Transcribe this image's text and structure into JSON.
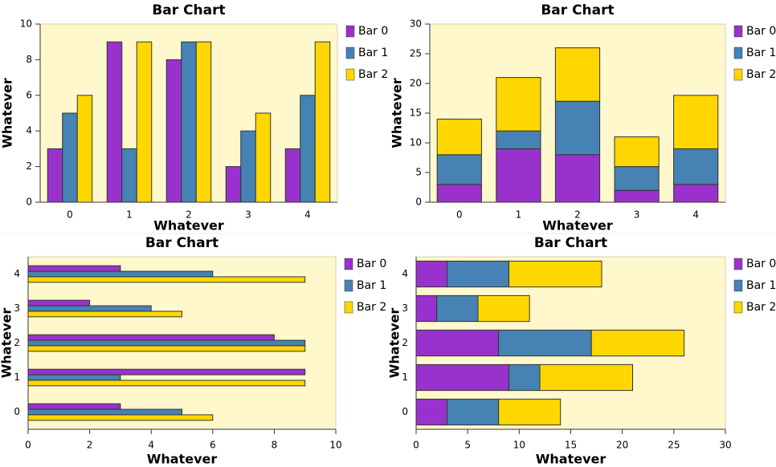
{
  "chart_data": [
    {
      "type": "bar",
      "orientation": "vertical",
      "stacked": false,
      "title": "Bar Chart",
      "x_label": "Whatever",
      "y_label": "Whatever",
      "categories": [
        "0",
        "1",
        "2",
        "3",
        "4"
      ],
      "series": [
        {
          "name": "Bar 0",
          "color": "#9932cc",
          "values": [
            3,
            9,
            8,
            2,
            3
          ]
        },
        {
          "name": "Bar 1",
          "color": "#4682b4",
          "values": [
            5,
            3,
            9,
            4,
            6
          ]
        },
        {
          "name": "Bar 2",
          "color": "#ffd700",
          "values": [
            6,
            9,
            9,
            5,
            9
          ]
        }
      ],
      "ylim": [
        0,
        10
      ],
      "yticks": [
        0,
        2,
        4,
        6,
        8,
        10
      ],
      "legend": "right"
    },
    {
      "type": "bar",
      "orientation": "vertical",
      "stacked": true,
      "title": "Bar Chart",
      "x_label": "Whatever",
      "y_label": "Whatever",
      "categories": [
        "0",
        "1",
        "2",
        "3",
        "4"
      ],
      "series": [
        {
          "name": "Bar 0",
          "color": "#9932cc",
          "values": [
            3,
            9,
            8,
            2,
            3
          ]
        },
        {
          "name": "Bar 1",
          "color": "#4682b4",
          "values": [
            5,
            3,
            9,
            4,
            6
          ]
        },
        {
          "name": "Bar 2",
          "color": "#ffd700",
          "values": [
            6,
            9,
            9,
            5,
            9
          ]
        }
      ],
      "ylim": [
        0,
        30
      ],
      "yticks": [
        0,
        5,
        10,
        15,
        20,
        25,
        30
      ],
      "legend": "right"
    },
    {
      "type": "bar",
      "orientation": "horizontal",
      "stacked": false,
      "title": "Bar Chart",
      "x_label": "Whatever",
      "y_label": "Whatever",
      "categories": [
        "0",
        "1",
        "2",
        "3",
        "4"
      ],
      "series": [
        {
          "name": "Bar 0",
          "color": "#9932cc",
          "values": [
            3,
            9,
            8,
            2,
            3
          ]
        },
        {
          "name": "Bar 1",
          "color": "#4682b4",
          "values": [
            5,
            3,
            9,
            4,
            6
          ]
        },
        {
          "name": "Bar 2",
          "color": "#ffd700",
          "values": [
            6,
            9,
            9,
            5,
            9
          ]
        }
      ],
      "xlim": [
        0,
        10
      ],
      "xticks": [
        0,
        2,
        4,
        6,
        8,
        10
      ],
      "legend": "right"
    },
    {
      "type": "bar",
      "orientation": "horizontal",
      "stacked": true,
      "title": "Bar Chart",
      "x_label": "Whatever",
      "y_label": "Whatever",
      "categories": [
        "0",
        "1",
        "2",
        "3",
        "4"
      ],
      "series": [
        {
          "name": "Bar 0",
          "color": "#9932cc",
          "values": [
            3,
            9,
            8,
            2,
            3
          ]
        },
        {
          "name": "Bar 1",
          "color": "#4682b4",
          "values": [
            5,
            3,
            9,
            4,
            6
          ]
        },
        {
          "name": "Bar 2",
          "color": "#ffd700",
          "values": [
            6,
            9,
            9,
            5,
            9
          ]
        }
      ],
      "xlim": [
        0,
        30
      ],
      "xticks": [
        0,
        5,
        10,
        15,
        20,
        25,
        30
      ],
      "legend": "right"
    }
  ]
}
